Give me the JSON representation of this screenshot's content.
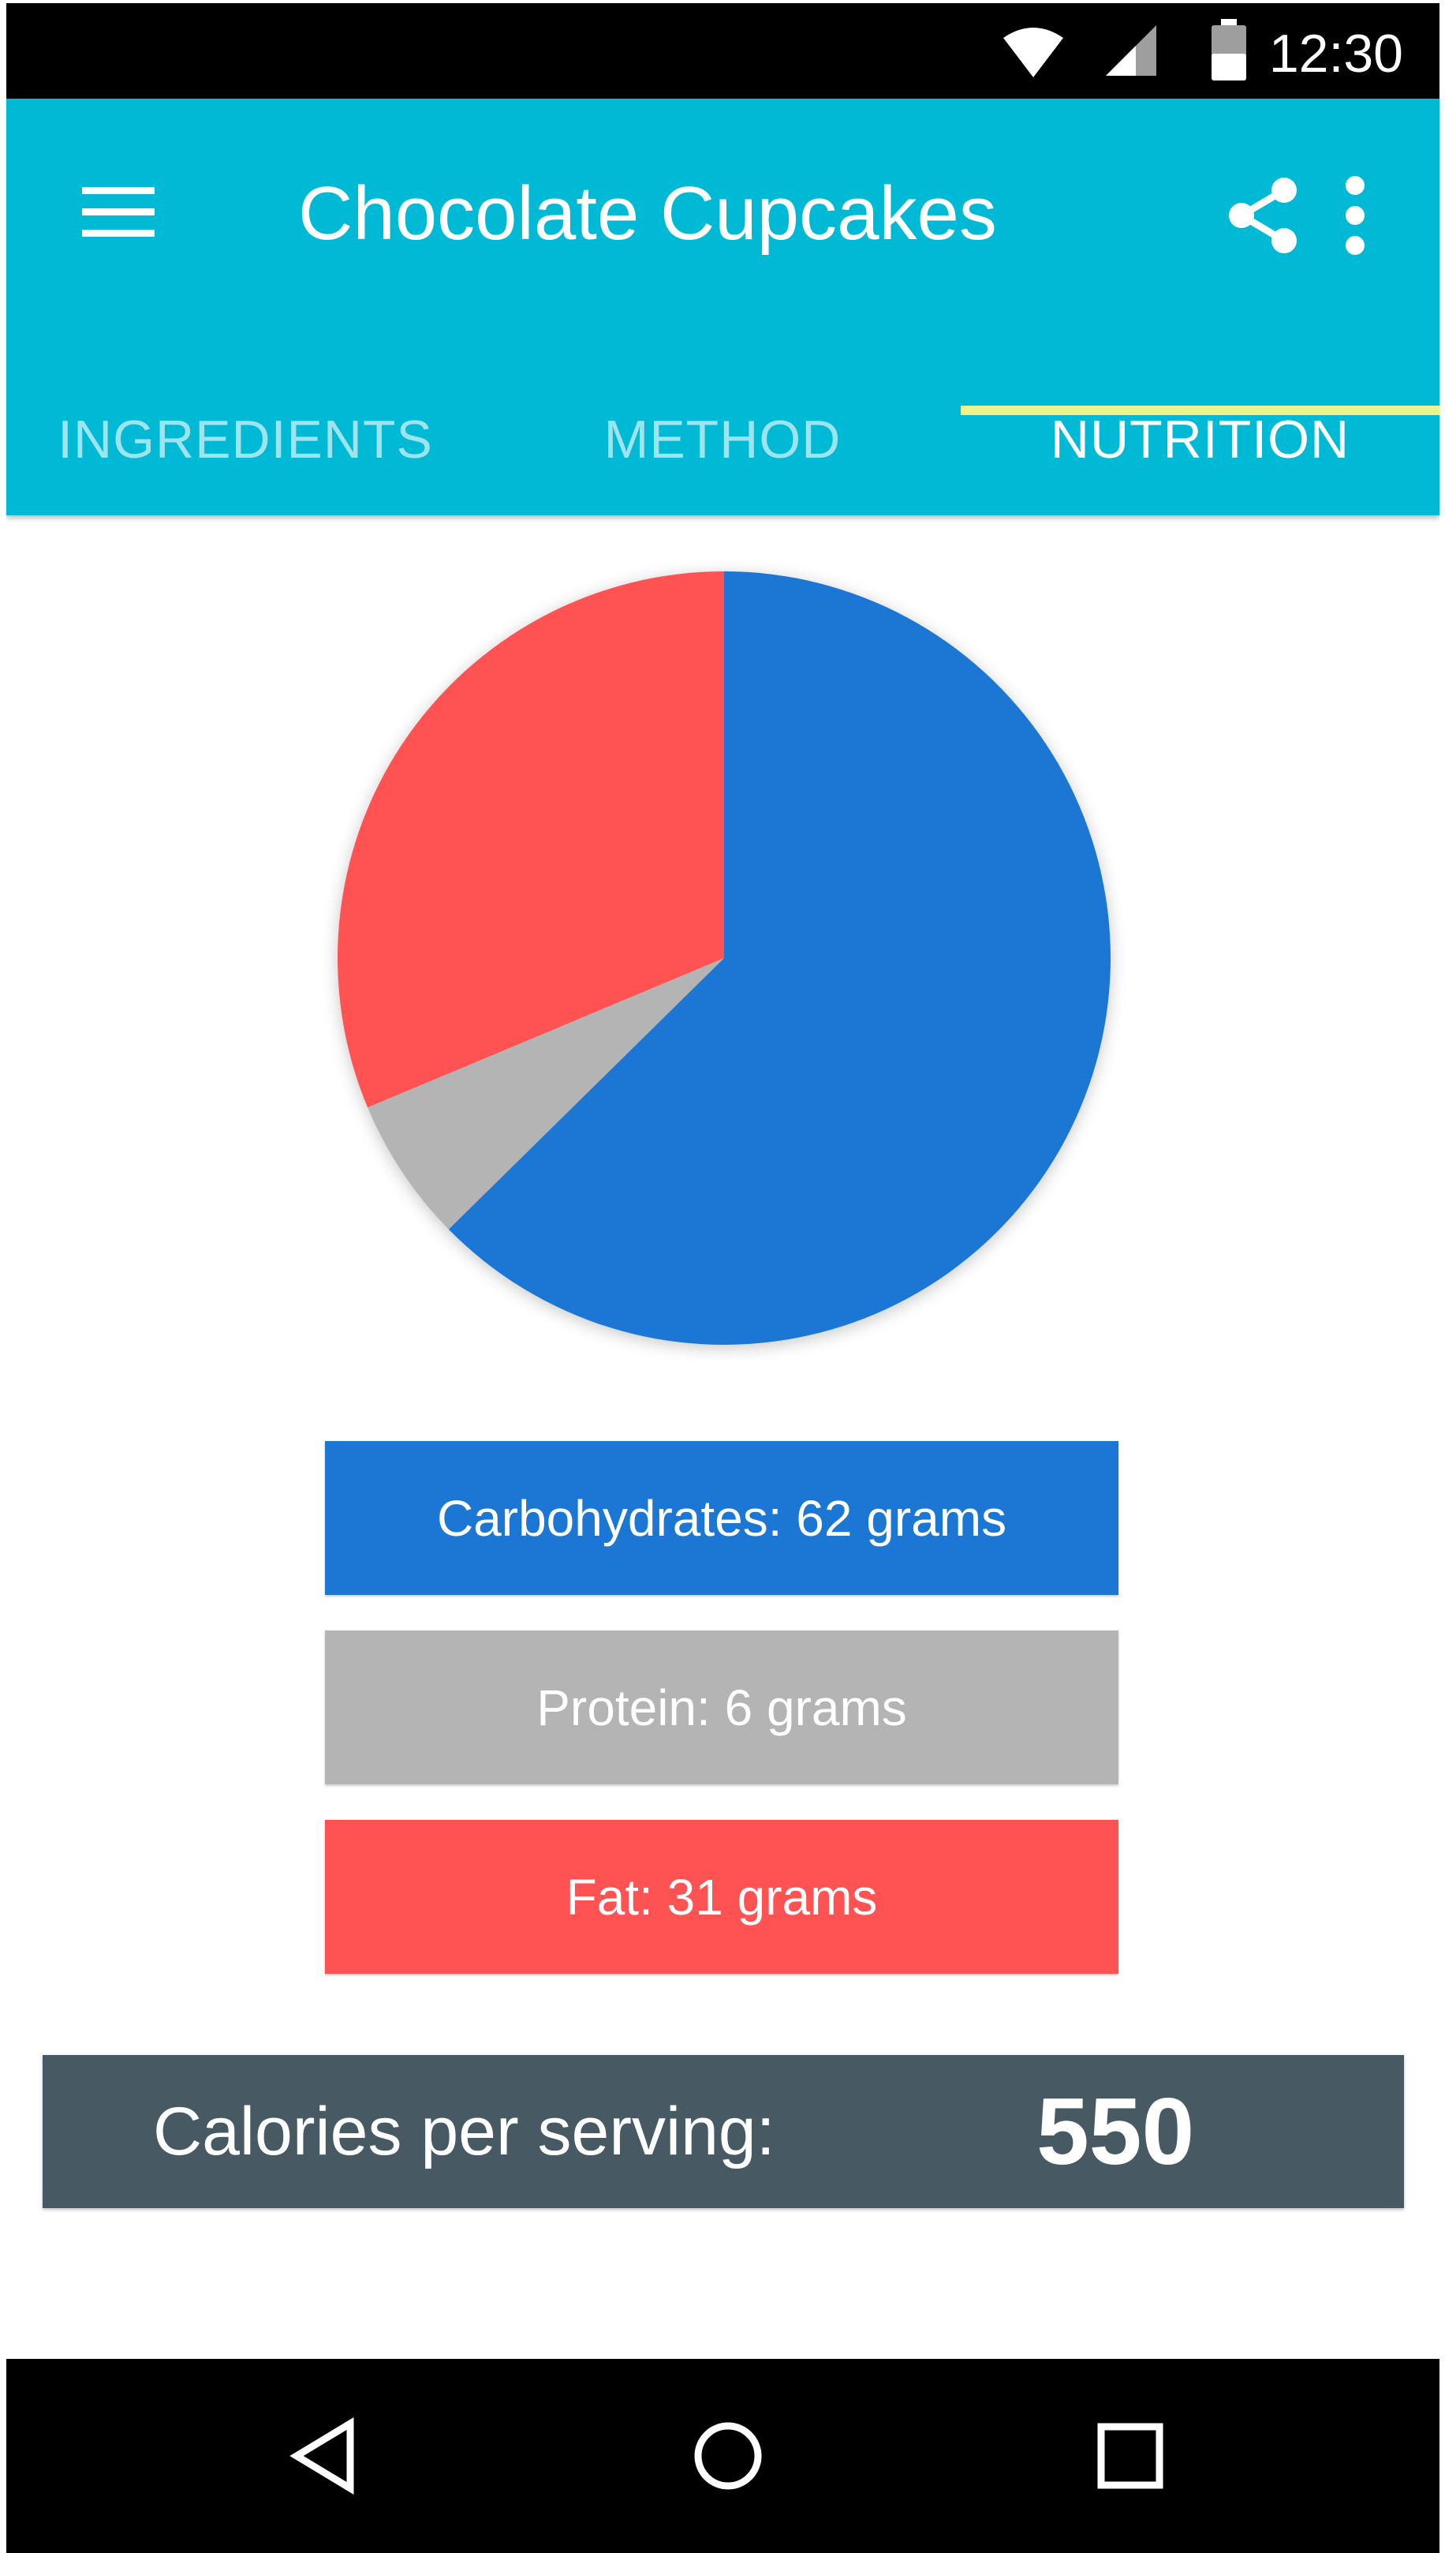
{
  "status_bar": {
    "time": "12:30",
    "icons": [
      "wifi-icon",
      "signal-icon",
      "battery-icon"
    ]
  },
  "app_bar": {
    "title": "Chocolate Cupcakes",
    "menu_icon": "menu-icon",
    "share_icon": "share-icon",
    "more_icon": "more-vertical-icon",
    "background": "#00BAD5"
  },
  "tabs": [
    {
      "label": "INGREDIENTS",
      "active": false
    },
    {
      "label": "METHOD",
      "active": false
    },
    {
      "label": "NUTRITION",
      "active": true
    }
  ],
  "chart_data": {
    "type": "pie",
    "slices": [
      {
        "name": "Carbohydrates",
        "value": 62,
        "unit": "grams",
        "color": "#1B76D4"
      },
      {
        "name": "Protein",
        "value": 6,
        "unit": "grams",
        "color": "#B4B4B4"
      },
      {
        "name": "Fat",
        "value": 31,
        "unit": "grams",
        "color": "#FF5252"
      }
    ]
  },
  "legend": [
    {
      "text": "Carbohydrates: 62 grams",
      "color": "#1B76D4"
    },
    {
      "text": "Protein: 6 grams",
      "color": "#B4B4B4"
    },
    {
      "text": "Fat: 31 grams",
      "color": "#FF5252"
    }
  ],
  "calories": {
    "label": "Calories per serving:",
    "value": "550",
    "background": "#475A63"
  },
  "nav_bar": {
    "buttons": [
      "back-icon",
      "home-icon",
      "recents-icon"
    ]
  }
}
